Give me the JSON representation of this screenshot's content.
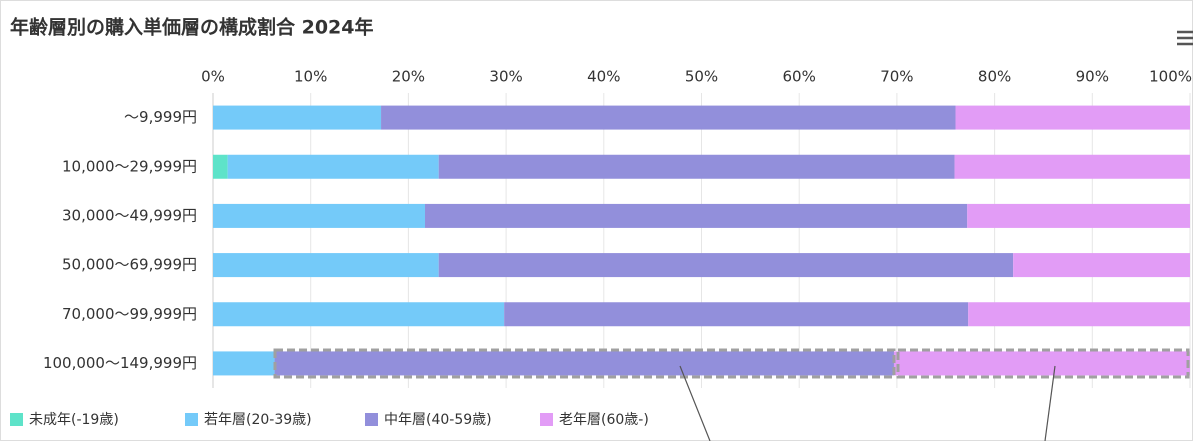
{
  "chart_data": {
    "type": "stacked-bar-horizontal",
    "title": "年齢層別の購入単価層の構成割合 2024年",
    "categories": [
      "～9,999円",
      "10,000～29,999円",
      "30,000～49,999円",
      "50,000～69,999円",
      "70,000～99,999円",
      "100,000～149,999円"
    ],
    "series": [
      {
        "name": "未成年(-19歳)",
        "color": "#5ee3c9",
        "values": [
          0,
          1.5,
          0,
          0,
          0,
          0
        ]
      },
      {
        "name": "若年層(20-39歳)",
        "color": "#74caf9",
        "values": [
          17.2,
          21.6,
          21.7,
          23.1,
          29.8,
          6.3
        ]
      },
      {
        "name": "中年層(40-59歳)",
        "color": "#928fdb",
        "values": [
          58.8,
          52.8,
          55.5,
          58.8,
          47.5,
          63.4
        ]
      },
      {
        "name": "老年層(60歳-)",
        "color": "#e29cf6",
        "values": [
          24.0,
          24.1,
          22.8,
          18.1,
          22.7,
          30.3
        ]
      }
    ],
    "xlim": [
      0,
      100
    ],
    "xticks": [
      {
        "value": 0,
        "label": "0%"
      },
      {
        "value": 10,
        "label": "10%"
      },
      {
        "value": 20,
        "label": "20%"
      },
      {
        "value": 30,
        "label": "30%"
      },
      {
        "value": 40,
        "label": "40%"
      },
      {
        "value": 50,
        "label": "50%"
      },
      {
        "value": 60,
        "label": "60%"
      },
      {
        "value": 70,
        "label": "70%"
      },
      {
        "value": 80,
        "label": "80%"
      },
      {
        "value": 90,
        "label": "90%"
      },
      {
        "value": 100,
        "label": "100%"
      }
    ],
    "grid": true,
    "legend": "bottom"
  }
}
